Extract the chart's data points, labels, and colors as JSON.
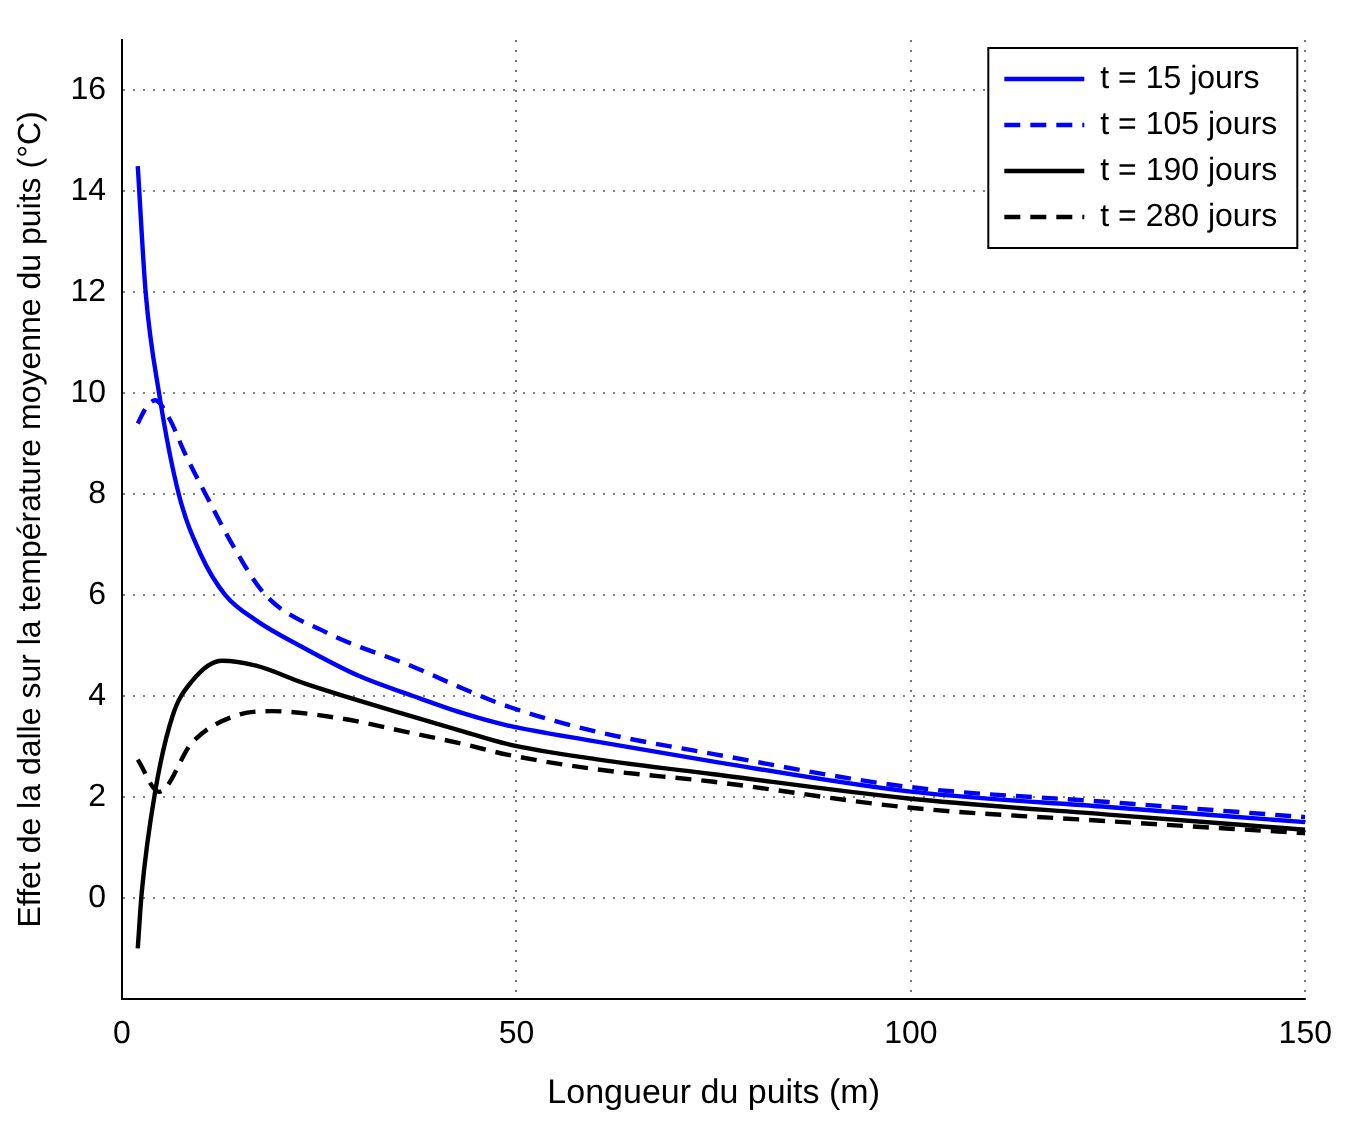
{
  "chart_data": {
    "type": "line",
    "xlabel": "Longueur du puits (m)",
    "ylabel": "Effet de la dalle sur la température moyenne du puits (°C)",
    "xlim": [
      0,
      150
    ],
    "xticks": [
      0,
      50,
      100,
      150
    ],
    "ylim": [
      -2,
      17
    ],
    "yticks": [
      0,
      2,
      4,
      6,
      8,
      10,
      12,
      14,
      16
    ],
    "grid": true,
    "legend": "top right",
    "marker": "none",
    "series": [
      {
        "name": "t = 15 jours",
        "color": "#0000ff",
        "line_style": "solid",
        "x": [
          2,
          3,
          4.7,
          7.2,
          10,
          13.1,
          17,
          22.5,
          30,
          36.9,
          43.2,
          48.8,
          60,
          75,
          99.7,
          125,
          150
        ],
        "values": [
          14.5,
          12,
          10,
          8,
          6.8,
          6,
          5.5,
          5,
          4.4,
          4,
          3.66,
          3.42,
          3.1,
          2.7,
          2.11,
          1.8,
          1.5
        ]
      },
      {
        "name": "t = 105 jours",
        "color": "#0000ff",
        "line_style": "dashed",
        "x": [
          2,
          3,
          4.2,
          6,
          8,
          10.6,
          14,
          18.2,
          25.9,
          36.9,
          43.2,
          48.8,
          60,
          75,
          99.7,
          125,
          150
        ],
        "values": [
          9.4,
          9.7,
          9.86,
          9.5,
          8.8,
          8,
          7,
          6,
          5.26,
          4.58,
          4.15,
          3.8,
          3.3,
          2.85,
          2.2,
          1.9,
          1.6
        ]
      },
      {
        "name": "t = 190 jours",
        "color": "#000000",
        "line_style": "solid",
        "x": [
          2,
          2.5,
          4.2,
          6.4,
          8.9,
          12.7,
          17,
          23.3,
          36,
          43.2,
          48.8,
          60,
          75,
          99.7,
          125,
          150
        ],
        "values": [
          -1,
          0.1,
          2.1,
          3.6,
          4.3,
          4.7,
          4.6,
          4.24,
          3.63,
          3.3,
          3.05,
          2.75,
          2.45,
          1.97,
          1.65,
          1.35
        ]
      },
      {
        "name": "t = 280 jours",
        "color": "#000000",
        "line_style": "dashed",
        "x": [
          2,
          4.7,
          8.9,
          14.8,
          19,
          27.6,
          36,
          43.2,
          48.8,
          60,
          75,
          99.7,
          125,
          150
        ],
        "values": [
          2.74,
          2.1,
          3.08,
          3.63,
          3.7,
          3.56,
          3.29,
          3.05,
          2.84,
          2.55,
          2.3,
          1.79,
          1.52,
          1.28
        ]
      }
    ]
  }
}
